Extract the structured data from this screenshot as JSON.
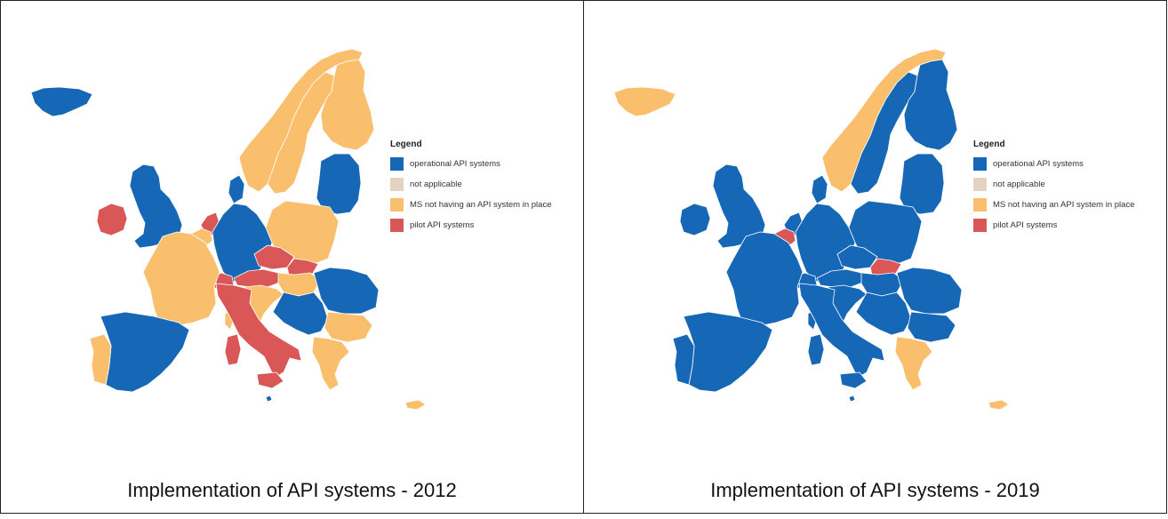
{
  "colors": {
    "operational": "#1767b7",
    "not_applicable": "#e3d3c0",
    "no_system": "#f9bf6c",
    "pilot": "#d95757"
  },
  "legend": {
    "title": "Legend",
    "items": [
      {
        "key": "operational",
        "label": "operational API systems"
      },
      {
        "key": "not_applicable",
        "label": "not applicable"
      },
      {
        "key": "no_system",
        "label": "MS not having an API system in place"
      },
      {
        "key": "pilot",
        "label": "pilot API systems"
      }
    ]
  },
  "maps": [
    {
      "caption": "Implementation of API systems - 2012",
      "status": {
        "iceland": "operational",
        "norway": "no_system",
        "sweden": "no_system",
        "finland": "no_system",
        "baltics": "operational",
        "uk": "operational",
        "ireland": "pilot",
        "denmark": "operational",
        "netherlands": "pilot",
        "belgium": "no_system",
        "germany": "operational",
        "poland": "no_system",
        "czechia": "pilot",
        "slovakia": "pilot",
        "austria": "pilot",
        "hungary": "no_system",
        "france": "no_system",
        "switzerland": "pilot",
        "italy": "pilot",
        "sardinia": "pilot",
        "sicily": "pilot",
        "slovenia_croatia": "no_system",
        "balkans": "operational",
        "romania": "operational",
        "bulgaria": "no_system",
        "greece": "no_system",
        "spain": "operational",
        "portugal": "no_system",
        "corsica": "no_system",
        "cyprus": "no_system",
        "malta": "operational",
        "azores": "operational"
      }
    },
    {
      "caption": "Implementation of API systems - 2019",
      "status": {
        "iceland": "no_system",
        "norway": "no_system",
        "sweden": "operational",
        "finland": "operational",
        "baltics": "operational",
        "uk": "operational",
        "ireland": "operational",
        "denmark": "operational",
        "netherlands": "operational",
        "belgium": "pilot",
        "germany": "operational",
        "poland": "operational",
        "czechia": "operational",
        "slovakia": "pilot",
        "austria": "operational",
        "hungary": "operational",
        "france": "operational",
        "switzerland": "operational",
        "italy": "operational",
        "sardinia": "operational",
        "sicily": "operational",
        "slovenia_croatia": "operational",
        "balkans": "operational",
        "romania": "operational",
        "bulgaria": "operational",
        "greece": "no_system",
        "spain": "operational",
        "portugal": "operational",
        "corsica": "operational",
        "cyprus": "no_system",
        "malta": "operational",
        "azores": "operational"
      }
    }
  ]
}
